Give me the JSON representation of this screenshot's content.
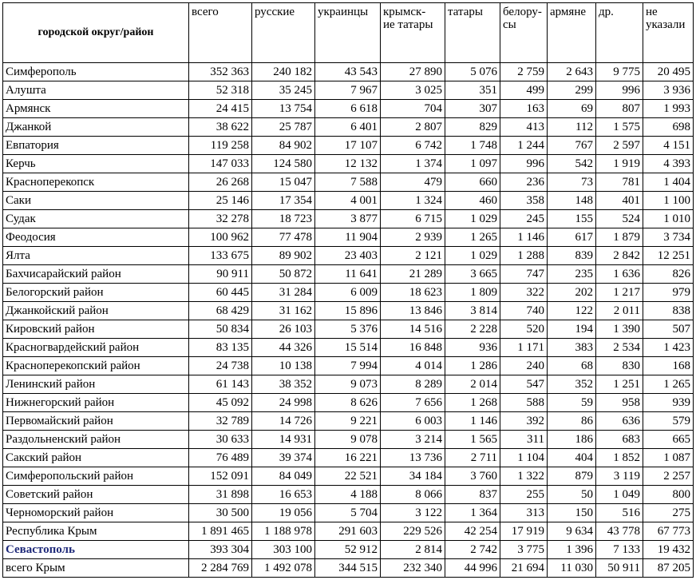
{
  "table": {
    "header": [
      "городской округ/район",
      "всего",
      "русские",
      "украинцы",
      "крымск-\nие татары",
      "татары",
      "белору-\nсы",
      "армяне",
      "др.",
      "не\nуказали"
    ],
    "rows": [
      {
        "name": "Симферополь",
        "values": [
          "352 363",
          "240 182",
          "43 543",
          "27 890",
          "5 076",
          "2 759",
          "2 643",
          "9 775",
          "20 495"
        ]
      },
      {
        "name": "Алушта",
        "values": [
          "52 318",
          "35 245",
          "7 967",
          "3 025",
          "351",
          "499",
          "299",
          "996",
          "3 936"
        ]
      },
      {
        "name": "Армянск",
        "values": [
          "24 415",
          "13 754",
          "6 618",
          "704",
          "307",
          "163",
          "69",
          "807",
          "1 993"
        ]
      },
      {
        "name": "Джанкой",
        "values": [
          "38 622",
          "25 787",
          "6 401",
          "2 807",
          "829",
          "413",
          "112",
          "1 575",
          "698"
        ]
      },
      {
        "name": "Евпатория",
        "values": [
          "119 258",
          "84 902",
          "17 107",
          "6 742",
          "1 748",
          "1 244",
          "767",
          "2 597",
          "4 151"
        ]
      },
      {
        "name": "Керчь",
        "values": [
          "147 033",
          "124 580",
          "12 132",
          "1 374",
          "1 097",
          "996",
          "542",
          "1 919",
          "4 393"
        ]
      },
      {
        "name": "Красноперекопск",
        "values": [
          "26 268",
          "15 047",
          "7 588",
          "479",
          "660",
          "236",
          "73",
          "781",
          "1 404"
        ]
      },
      {
        "name": "Саки",
        "values": [
          "25 146",
          "17 354",
          "4 001",
          "1 324",
          "460",
          "358",
          "148",
          "401",
          "1 100"
        ]
      },
      {
        "name": "Судак",
        "values": [
          "32 278",
          "18 723",
          "3 877",
          "6 715",
          "1 029",
          "245",
          "155",
          "524",
          "1 010"
        ]
      },
      {
        "name": "Феодосия",
        "values": [
          "100 962",
          "77 478",
          "11 904",
          "2 939",
          "1 265",
          "1 146",
          "617",
          "1 879",
          "3 734"
        ]
      },
      {
        "name": "Ялта",
        "values": [
          "133 675",
          "89 902",
          "23 403",
          "2 121",
          "1 029",
          "1 288",
          "839",
          "2 842",
          "12 251"
        ]
      },
      {
        "name": "Бахчисарайский район",
        "values": [
          "90 911",
          "50 872",
          "11 641",
          "21 289",
          "3 665",
          "747",
          "235",
          "1 636",
          "826"
        ]
      },
      {
        "name": "Белогорский район",
        "values": [
          "60 445",
          "31 284",
          "6 009",
          "18 623",
          "1 809",
          "322",
          "202",
          "1 217",
          "979"
        ]
      },
      {
        "name": "Джанкойский район",
        "values": [
          "68 429",
          "31 162",
          "15 896",
          "13 846",
          "3 814",
          "740",
          "122",
          "2 011",
          "838"
        ]
      },
      {
        "name": "Кировский район",
        "values": [
          "50 834",
          "26 103",
          "5 376",
          "14 516",
          "2 228",
          "520",
          "194",
          "1 390",
          "507"
        ]
      },
      {
        "name": "Красногвардейский район",
        "values": [
          "83 135",
          "44 326",
          "15 514",
          "16 848",
          "936",
          "1 171",
          "383",
          "2 534",
          "1 423"
        ]
      },
      {
        "name": "Красноперекопский район",
        "values": [
          "24 738",
          "10 138",
          "7 994",
          "4 014",
          "1 286",
          "240",
          "68",
          "830",
          "168"
        ]
      },
      {
        "name": "Ленинский район",
        "values": [
          "61 143",
          "38 352",
          "9 073",
          "8 289",
          "2 014",
          "547",
          "352",
          "1 251",
          "1 265"
        ]
      },
      {
        "name": "Нижнегорский район",
        "values": [
          "45 092",
          "24 998",
          "8 626",
          "7 656",
          "1 268",
          "588",
          "59",
          "958",
          "939"
        ]
      },
      {
        "name": "Первомайский район",
        "values": [
          "32 789",
          "14 726",
          "9 221",
          "6 003",
          "1 146",
          "392",
          "86",
          "636",
          "579"
        ]
      },
      {
        "name": "Раздольненский район",
        "values": [
          "30 633",
          "14 931",
          "9 078",
          "3 214",
          "1 565",
          "311",
          "186",
          "683",
          "665"
        ]
      },
      {
        "name": "Сакский район",
        "values": [
          "76 489",
          "39 374",
          "16 221",
          "13 736",
          "2 711",
          "1 104",
          "404",
          "1 852",
          "1 087"
        ]
      },
      {
        "name": "Симферопольский район",
        "values": [
          "152 091",
          "84 049",
          "22 521",
          "34 184",
          "3 760",
          "1 322",
          "879",
          "3 119",
          "2 257"
        ]
      },
      {
        "name": "Советский район",
        "values": [
          "31 898",
          "16 653",
          "4 188",
          "8 066",
          "837",
          "255",
          "50",
          "1 049",
          "800"
        ]
      },
      {
        "name": "Черноморский район",
        "values": [
          "30 500",
          "19 056",
          "5 704",
          "3 122",
          "1 364",
          "313",
          "150",
          "516",
          "275"
        ]
      },
      {
        "name": "Республика Крым",
        "values": [
          "1 891 465",
          "1 188 978",
          "291 603",
          "229 526",
          "42 254",
          "17 919",
          "9 634",
          "43 778",
          "67 773"
        ]
      },
      {
        "name": "Севастополь",
        "values": [
          "393 304",
          "303 100",
          "52 912",
          "2 814",
          "2 742",
          "3 775",
          "1 396",
          "7 133",
          "19 432"
        ]
      },
      {
        "name": "всего Крым",
        "values": [
          "2 284 769",
          "1 492 078",
          "344 515",
          "232 340",
          "44 996",
          "21 694",
          "11 030",
          "50 911",
          "87 205"
        ]
      }
    ]
  }
}
